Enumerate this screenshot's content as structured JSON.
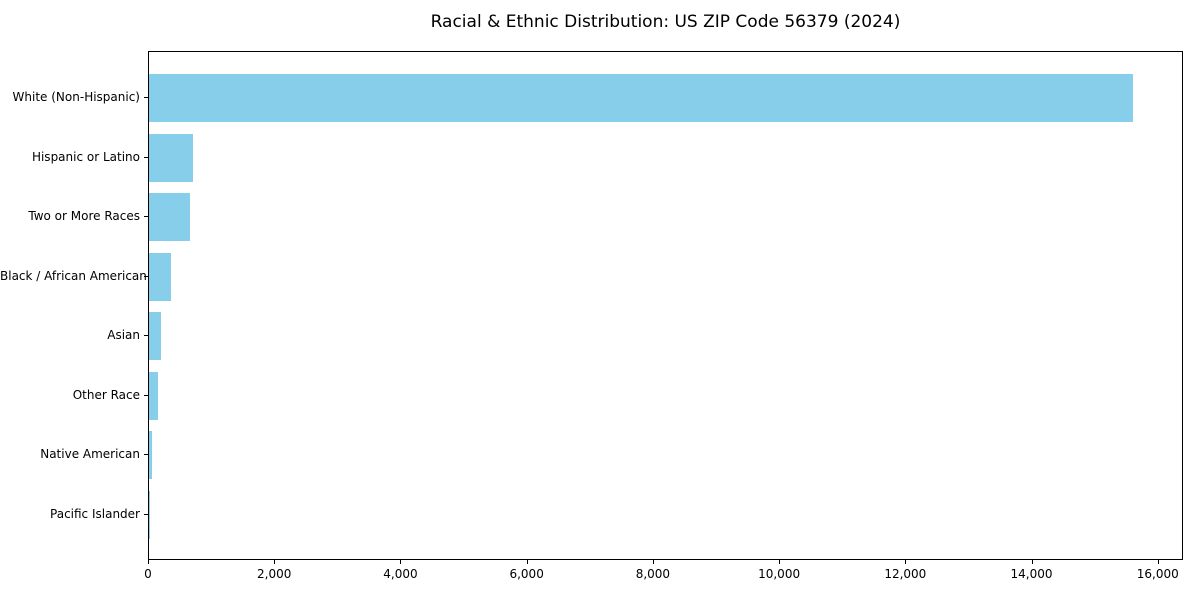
{
  "chart_data": {
    "type": "bar",
    "orientation": "horizontal",
    "title": "Racial & Ethnic Distribution: US ZIP Code 56379 (2024)",
    "categories": [
      "White (Non-Hispanic)",
      "Hispanic or Latino",
      "Two or More Races",
      "Black / African American",
      "Asian",
      "Other Race",
      "Native American",
      "Pacific Islander"
    ],
    "values": [
      15630,
      700,
      650,
      350,
      190,
      140,
      40,
      5
    ],
    "xlabel": "",
    "ylabel": "",
    "xlim": [
      0,
      16400
    ],
    "xticks": [
      0,
      2000,
      4000,
      6000,
      8000,
      10000,
      12000,
      14000,
      16000
    ],
    "xtick_labels": [
      "0",
      "2,000",
      "4,000",
      "6,000",
      "8,000",
      "10,000",
      "12,000",
      "14,000",
      "16,000"
    ],
    "bar_color": "#87CEEB",
    "axis_color": "#000000",
    "background_color": "#ffffff",
    "grid": false,
    "legend": null
  }
}
